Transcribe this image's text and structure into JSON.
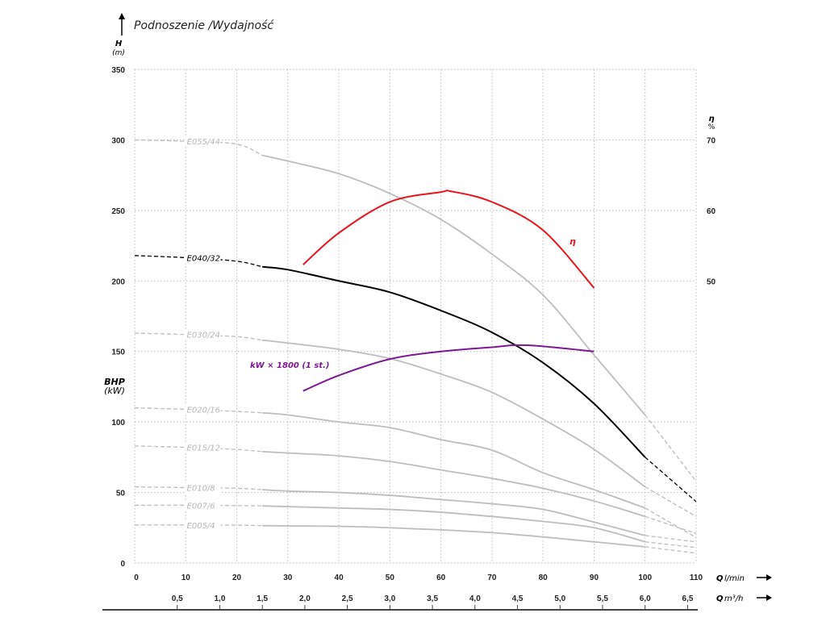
{
  "chart_data": {
    "type": "line",
    "title": "Podnoszenie /Wydajność",
    "ylabel": "H",
    "yunit": "(m)",
    "y2label": "η",
    "y2unit": "%",
    "bhp_label": "BHP",
    "bhp_unit": "(kW)",
    "xlabel": "Q",
    "xunit": "l/min",
    "x2label": "Q",
    "x2unit": "m³/h",
    "xlim": [
      0,
      110
    ],
    "ylim": [
      0,
      350
    ],
    "xticks": [
      0,
      10,
      20,
      30,
      40,
      50,
      60,
      70,
      80,
      90,
      100,
      110
    ],
    "yticks": [
      0,
      50,
      100,
      150,
      200,
      250,
      300,
      350
    ],
    "y2ticks": [
      50,
      60,
      70
    ],
    "x2ticks": [
      "0,5",
      "1,0",
      "1,5",
      "2,0",
      "2,5",
      "3,0",
      "3,5",
      "4,0",
      "4,5",
      "5,0",
      "5,5",
      "6,0",
      "6,5"
    ],
    "x2tick_values": [
      0.5,
      1.0,
      1.5,
      2.0,
      2.5,
      3.0,
      3.5,
      4.0,
      4.5,
      5.0,
      5.5,
      6.0,
      6.5
    ],
    "grid": true,
    "x": [
      0,
      10,
      20,
      25,
      30,
      40,
      50,
      60,
      70,
      80,
      90,
      100,
      110
    ],
    "series": [
      {
        "name": "E055/44",
        "color": "#bdbdbd",
        "values": [
          300,
          299,
          297,
          289,
          285,
          276,
          262,
          243.6,
          219,
          190,
          147.5,
          105,
          58
        ]
      },
      {
        "name": "E040/32",
        "color": "#000000",
        "values": [
          218,
          216.5,
          214,
          210,
          208,
          200,
          192,
          179,
          163.5,
          142,
          113,
          75,
          43.5
        ]
      },
      {
        "name": "E030/24",
        "color": "#bdbdbd",
        "values": [
          163,
          162,
          160.5,
          158,
          156,
          151.5,
          145,
          134,
          121,
          102,
          80.6,
          54,
          33
        ]
      },
      {
        "name": "E020/16",
        "color": "#bdbdbd",
        "values": [
          110,
          109,
          107.5,
          106.5,
          105,
          100,
          96,
          87.5,
          80,
          64,
          52,
          39,
          18
        ]
      },
      {
        "name": "E015/12",
        "color": "#bdbdbd",
        "values": [
          83,
          82,
          80.5,
          79,
          78,
          76,
          72,
          66,
          60,
          53,
          44,
          33,
          21
        ]
      },
      {
        "name": "E010/8",
        "color": "#bdbdbd",
        "values": [
          54,
          53.5,
          53,
          52,
          51,
          50,
          48,
          45,
          42,
          38,
          29,
          19.5,
          15
        ]
      },
      {
        "name": "E007/6",
        "color": "#bdbdbd",
        "values": [
          41,
          41,
          40.7,
          40.5,
          40,
          39,
          38,
          36,
          33,
          29.5,
          25,
          15,
          11
        ]
      },
      {
        "name": "E005/4",
        "color": "#bdbdbd",
        "values": [
          27,
          27,
          26.8,
          26.5,
          26.3,
          26,
          25,
          23.5,
          21.5,
          18.5,
          15,
          11.5,
          7
        ]
      }
    ],
    "efficiency": {
      "name": "η",
      "color": "#e8141b",
      "x": [
        33,
        40,
        50,
        60,
        62,
        70,
        80,
        90
      ],
      "values": [
        52.3,
        56.8,
        61.2,
        62.6,
        62.7,
        61.2,
        57.2,
        49
      ]
    },
    "power": {
      "name": "kW × 1800 (1 st.)",
      "color": "#7d1895",
      "x": [
        33,
        40,
        50,
        60,
        70,
        77,
        90
      ],
      "values": [
        122,
        133,
        144.6,
        150,
        153,
        154.4,
        150
      ]
    }
  }
}
